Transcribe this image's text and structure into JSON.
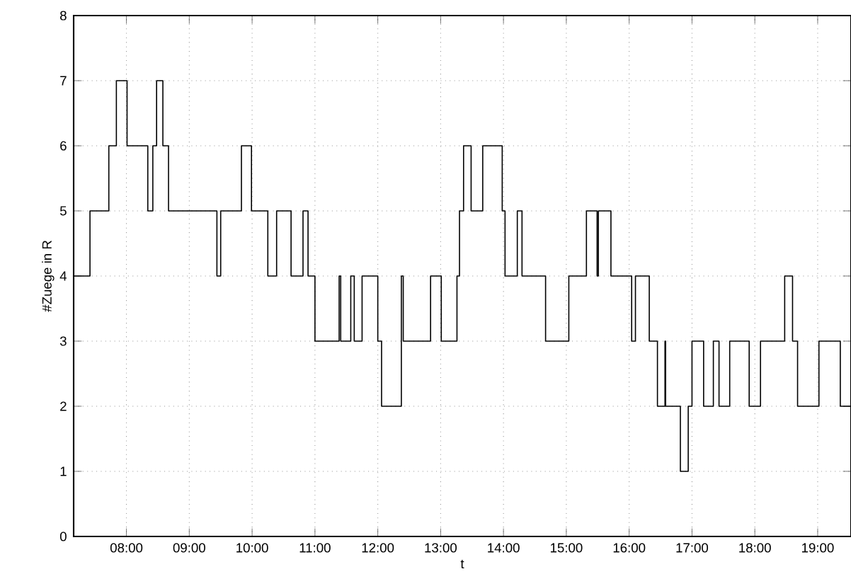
{
  "chart_data": {
    "type": "step",
    "xlabel": "t",
    "ylabel": "#Zuege in R",
    "x": [
      7.16,
      7.42,
      7.72,
      7.84,
      8.01,
      8.34,
      8.42,
      8.48,
      8.58,
      8.67,
      9.44,
      9.5,
      9.83,
      9.99,
      10.25,
      10.39,
      10.62,
      10.81,
      10.89,
      11.0,
      11.385,
      11.41,
      11.57,
      11.625,
      11.75,
      12.0,
      12.06,
      12.375,
      12.405,
      12.84,
      13.01,
      13.26,
      13.3,
      13.365,
      13.485,
      13.67,
      13.98,
      14.025,
      14.22,
      14.295,
      14.67,
      15.04,
      15.32,
      15.49,
      15.51,
      15.71,
      16.04,
      16.1,
      16.32,
      16.45,
      16.57,
      16.58,
      16.815,
      16.94,
      17.0,
      17.185,
      17.34,
      17.43,
      17.6,
      17.91,
      18.09,
      18.475,
      18.6,
      18.68,
      19.02,
      19.36,
      19.53
    ],
    "series": [
      {
        "color": "#000000",
        "values": [
          4,
          5,
          6,
          7,
          6,
          5,
          6,
          7,
          6,
          5,
          4,
          5,
          6,
          5,
          4,
          5,
          4,
          5,
          4,
          3,
          4,
          3,
          4,
          3,
          4,
          3,
          2,
          4,
          3,
          4,
          3,
          4,
          5,
          6,
          5,
          6,
          5,
          4,
          5,
          4,
          3,
          4,
          5,
          4,
          5,
          4,
          3,
          4,
          3,
          2,
          3,
          2,
          1,
          2,
          3,
          2,
          3,
          2,
          3,
          2,
          3,
          4,
          3,
          2,
          3,
          2,
          2
        ]
      }
    ],
    "xlim": [
      7.16,
      19.53
    ],
    "ylim": [
      0,
      8
    ],
    "xticks": [
      {
        "value": 8,
        "label": "08:00"
      },
      {
        "value": 9,
        "label": "09:00"
      },
      {
        "value": 10,
        "label": "10:00"
      },
      {
        "value": 11,
        "label": "11:00"
      },
      {
        "value": 12,
        "label": "12:00"
      },
      {
        "value": 13,
        "label": "13:00"
      },
      {
        "value": 14,
        "label": "14:00"
      },
      {
        "value": 15,
        "label": "15:00"
      },
      {
        "value": 16,
        "label": "16:00"
      },
      {
        "value": 17,
        "label": "17:00"
      },
      {
        "value": 18,
        "label": "18:00"
      },
      {
        "value": 19,
        "label": "19:00"
      }
    ],
    "yticks": [
      0,
      1,
      2,
      3,
      4,
      5,
      6,
      7,
      8
    ],
    "grid": true
  }
}
